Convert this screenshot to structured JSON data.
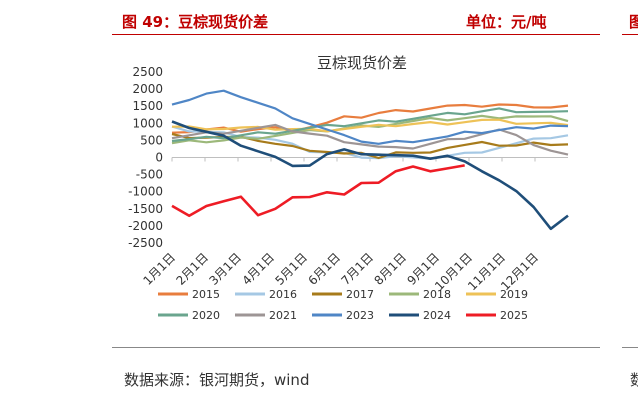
{
  "header": {
    "figure_title": "图 49：豆棕现货价差",
    "unit": "单位：元/吨"
  },
  "footer": {
    "source": "数据来源：银河期货，wind"
  },
  "edge": {
    "next_title_char": "图",
    "next_source_char": "数"
  },
  "chart_data": {
    "type": "line",
    "title": "豆棕现货价差",
    "x_tick_labels": [
      "1月1日",
      "2月1日",
      "3月1日",
      "4月1日",
      "5月1日",
      "6月1日",
      "7月1日",
      "8月1日",
      "9月1日",
      "10月1日",
      "11月1日",
      "12月1日"
    ],
    "y_ticks": [
      "2500",
      "2000",
      "1500",
      "1000",
      "500",
      "0",
      "-500",
      "-1000",
      "-1500",
      "-2000",
      "-2500"
    ],
    "ylim": [
      -2500,
      2500
    ],
    "grid": false,
    "legend_position": "bottom",
    "series": [
      {
        "name": "2015",
        "color": "#e87d3e",
        "y": [
          780,
          760,
          800,
          820,
          790,
          830,
          850,
          820,
          900,
          1000,
          1150,
          1200,
          1300,
          1350,
          1400,
          1450,
          1500,
          1480,
          1520,
          1550,
          1500,
          1520,
          1480,
          1500
        ]
      },
      {
        "name": "2016",
        "color": "#a5c8e4",
        "y": [
          850,
          800,
          750,
          700,
          650,
          600,
          500,
          350,
          200,
          150,
          100,
          50,
          0,
          20,
          -50,
          0,
          50,
          100,
          200,
          300,
          400,
          500,
          600,
          650
        ]
      },
      {
        "name": "2017",
        "color": "#a77b1b",
        "y": [
          650,
          620,
          600,
          580,
          550,
          520,
          400,
          300,
          250,
          180,
          100,
          80,
          20,
          150,
          100,
          200,
          300,
          350,
          400,
          380,
          350,
          400,
          420,
          400
        ]
      },
      {
        "name": "2018",
        "color": "#9cb87a",
        "y": [
          400,
          450,
          480,
          500,
          550,
          600,
          650,
          700,
          750,
          800,
          850,
          900,
          950,
          1000,
          1050,
          1100,
          1120,
          1150,
          1180,
          1200,
          1220,
          1180,
          1150,
          1100
        ]
      },
      {
        "name": "2019",
        "color": "#eec257",
        "y": [
          900,
          870,
          880,
          850,
          860,
          840,
          850,
          830,
          800,
          820,
          850,
          880,
          900,
          950,
          980,
          1000,
          1020,
          1050,
          1080,
          1050,
          1020,
          1000,
          980,
          1000
        ]
      },
      {
        "name": "2020",
        "color": "#6aa58e",
        "y": [
          500,
          520,
          550,
          600,
          650,
          700,
          750,
          800,
          850,
          900,
          950,
          1000,
          1050,
          1100,
          1150,
          1200,
          1250,
          1300,
          1350,
          1400,
          1380,
          1350,
          1320,
          1300
        ]
      },
      {
        "name": "2021",
        "color": "#9d9595",
        "y": [
          600,
          650,
          700,
          750,
          800,
          850,
          900,
          800,
          700,
          600,
          500,
          400,
          300,
          250,
          300,
          400,
          500,
          600,
          700,
          800,
          600,
          400,
          200,
          50
        ]
      },
      {
        "name": "2023",
        "color": "#4f86c6",
        "y": [
          1600,
          1700,
          1850,
          1900,
          1800,
          1600,
          1400,
          1200,
          1000,
          800,
          600,
          500,
          400,
          450,
          500,
          550,
          600,
          700,
          750,
          800,
          850,
          900,
          950,
          900
        ]
      },
      {
        "name": "2024",
        "color": "#1f4e79",
        "y": [
          1000,
          900,
          750,
          600,
          400,
          200,
          0,
          -300,
          -200,
          100,
          200,
          150,
          100,
          50,
          0,
          0,
          50,
          -150,
          -350,
          -650,
          -1000,
          -1500,
          -2050,
          -1700
        ]
      },
      {
        "name": "2025",
        "color": "#ee1c25",
        "y": [
          -1450,
          -1650,
          -1400,
          -1300,
          -1200,
          -1650,
          -1500,
          -1200,
          -1100,
          -1000,
          -1100,
          -800,
          -700,
          -400,
          -300,
          -350,
          -300,
          -250
        ]
      }
    ]
  }
}
